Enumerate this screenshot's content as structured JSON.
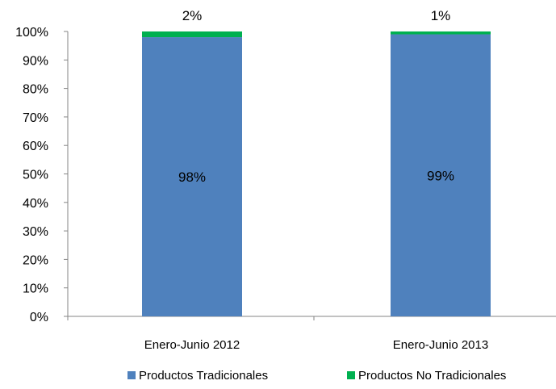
{
  "chart_data": {
    "type": "bar",
    "stacked": true,
    "percent_stacked": true,
    "categories": [
      "Enero-Junio 2012",
      "Enero-Junio 2013"
    ],
    "series": [
      {
        "name": "Productos Tradicionales",
        "values": [
          98,
          99
        ],
        "labels": [
          "98%",
          "99%"
        ],
        "color": "#4f81bd"
      },
      {
        "name": "Productos No Tradicionales",
        "values": [
          2,
          1
        ],
        "labels": [
          "2%",
          "1%"
        ],
        "color": "#00b050"
      }
    ],
    "y_ticks": [
      "0%",
      "10%",
      "20%",
      "30%",
      "40%",
      "50%",
      "60%",
      "70%",
      "80%",
      "90%",
      "100%"
    ],
    "ylim": [
      0,
      100
    ],
    "grid": false,
    "legend_position": "bottom"
  }
}
